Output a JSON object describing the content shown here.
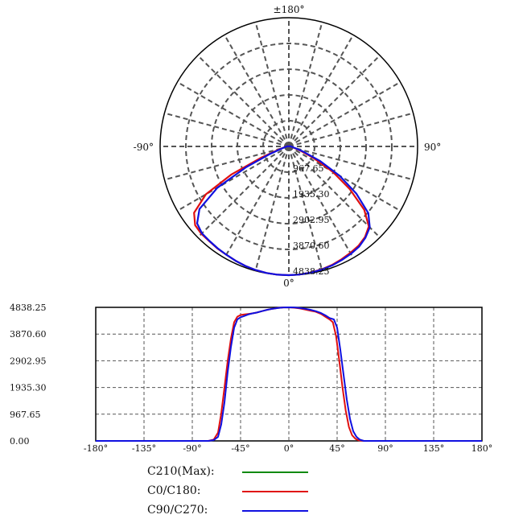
{
  "chart_data": [
    {
      "type": "polar",
      "angle_labels": {
        "top": "±180°",
        "left": "-90°",
        "right": "90°",
        "bottom": "0°"
      },
      "radial_labels": [
        "967.65",
        "1935.30",
        "2902.95",
        "3870.60",
        "4838.25"
      ],
      "rmax": 4838.25,
      "grid": true,
      "series": [
        {
          "name": "C0/C180",
          "color": "#e01010",
          "points": [
            [
              -180,
              0
            ],
            [
              -140,
              0
            ],
            [
              -100,
              60
            ],
            [
              -80,
              160
            ],
            [
              -72,
              450
            ],
            [
              -68,
              1100
            ],
            [
              -64,
              2400
            ],
            [
              -60,
              3600
            ],
            [
              -55,
              4350
            ],
            [
              -50,
              4600
            ],
            [
              -45,
              4650
            ],
            [
              -40,
              4650
            ],
            [
              -35,
              4680
            ],
            [
              -30,
              4700
            ],
            [
              -25,
              4740
            ],
            [
              -20,
              4780
            ],
            [
              -15,
              4810
            ],
            [
              -10,
              4830
            ],
            [
              -5,
              4838
            ],
            [
              0,
              4838
            ],
            [
              5,
              4830
            ],
            [
              10,
              4810
            ],
            [
              15,
              4780
            ],
            [
              20,
              4740
            ],
            [
              25,
              4680
            ],
            [
              30,
              4620
            ],
            [
              35,
              4560
            ],
            [
              40,
              4450
            ],
            [
              45,
              4250
            ],
            [
              50,
              3700
            ],
            [
              55,
              2800
            ],
            [
              60,
              1900
            ],
            [
              65,
              1000
            ],
            [
              70,
              450
            ],
            [
              75,
              200
            ],
            [
              80,
              120
            ],
            [
              100,
              50
            ],
            [
              140,
              0
            ],
            [
              180,
              0
            ]
          ]
        },
        {
          "name": "C90/C270",
          "color": "#1010e0",
          "points": [
            [
              -180,
              0
            ],
            [
              -140,
              0
            ],
            [
              -100,
              50
            ],
            [
              -80,
              150
            ],
            [
              -72,
              350
            ],
            [
              -68,
              800
            ],
            [
              -64,
              1800
            ],
            [
              -60,
              3100
            ],
            [
              -55,
              4100
            ],
            [
              -50,
              4500
            ],
            [
              -45,
              4620
            ],
            [
              -40,
              4640
            ],
            [
              -35,
              4670
            ],
            [
              -30,
              4700
            ],
            [
              -25,
              4740
            ],
            [
              -20,
              4780
            ],
            [
              -15,
              4810
            ],
            [
              -10,
              4830
            ],
            [
              -5,
              4838
            ],
            [
              0,
              4838
            ],
            [
              5,
              4830
            ],
            [
              10,
              4815
            ],
            [
              15,
              4790
            ],
            [
              20,
              4760
            ],
            [
              25,
              4710
            ],
            [
              30,
              4660
            ],
            [
              35,
              4600
            ],
            [
              40,
              4480
            ],
            [
              45,
              4300
            ],
            [
              50,
              3900
            ],
            [
              55,
              3100
            ],
            [
              60,
              2200
            ],
            [
              65,
              1300
            ],
            [
              70,
              600
            ],
            [
              75,
              250
            ],
            [
              80,
              130
            ],
            [
              100,
              50
            ],
            [
              140,
              0
            ],
            [
              180,
              0
            ]
          ]
        }
      ]
    },
    {
      "type": "line",
      "x_ticks": [
        "-180°",
        "-135°",
        "-90°",
        "-45°",
        "0°",
        "45°",
        "90°",
        "135°",
        "180°"
      ],
      "y_ticks": [
        "4838.25",
        "3870.60",
        "2902.95",
        "1935.30",
        "967.65",
        "0.00"
      ],
      "xlim": [
        -180,
        180
      ],
      "ylim": [
        0,
        4838.25
      ],
      "grid": true,
      "series": [
        {
          "name": "C0/C180",
          "color": "#e01010",
          "points": [
            [
              -180,
              0
            ],
            [
              -100,
              0
            ],
            [
              -75,
              0
            ],
            [
              -70,
              50
            ],
            [
              -66,
              300
            ],
            [
              -63,
              1000
            ],
            [
              -60,
              1935
            ],
            [
              -57,
              2900
            ],
            [
              -54,
              3700
            ],
            [
              -51,
              4300
            ],
            [
              -48,
              4500
            ],
            [
              -45,
              4560
            ],
            [
              -42,
              4580
            ],
            [
              -38,
              4600
            ],
            [
              -34,
              4620
            ],
            [
              -30,
              4650
            ],
            [
              -25,
              4700
            ],
            [
              -20,
              4750
            ],
            [
              -15,
              4790
            ],
            [
              -10,
              4815
            ],
            [
              -5,
              4835
            ],
            [
              0,
              4838
            ],
            [
              5,
              4825
            ],
            [
              10,
              4800
            ],
            [
              15,
              4760
            ],
            [
              20,
              4720
            ],
            [
              25,
              4680
            ],
            [
              30,
              4600
            ],
            [
              34,
              4500
            ],
            [
              38,
              4400
            ],
            [
              41,
              4300
            ],
            [
              44,
              3800
            ],
            [
              47,
              2900
            ],
            [
              50,
              1935
            ],
            [
              53,
              1100
            ],
            [
              56,
              500
            ],
            [
              59,
              200
            ],
            [
              62,
              80
            ],
            [
              65,
              20
            ],
            [
              70,
              0
            ],
            [
              100,
              0
            ],
            [
              180,
              0
            ]
          ]
        },
        {
          "name": "C90/C270",
          "color": "#1010e0",
          "points": [
            [
              -180,
              0
            ],
            [
              -100,
              0
            ],
            [
              -75,
              0
            ],
            [
              -70,
              30
            ],
            [
              -66,
              150
            ],
            [
              -63,
              600
            ],
            [
              -60,
              1400
            ],
            [
              -57,
              2500
            ],
            [
              -54,
              3400
            ],
            [
              -51,
              4100
            ],
            [
              -48,
              4400
            ],
            [
              -45,
              4480
            ],
            [
              -42,
              4520
            ],
            [
              -38,
              4580
            ],
            [
              -34,
              4620
            ],
            [
              -30,
              4650
            ],
            [
              -25,
              4700
            ],
            [
              -20,
              4750
            ],
            [
              -15,
              4790
            ],
            [
              -10,
              4815
            ],
            [
              -5,
              4835
            ],
            [
              0,
              4838
            ],
            [
              5,
              4835
            ],
            [
              10,
              4815
            ],
            [
              15,
              4790
            ],
            [
              20,
              4750
            ],
            [
              25,
              4700
            ],
            [
              30,
              4630
            ],
            [
              34,
              4550
            ],
            [
              38,
              4450
            ],
            [
              42,
              4400
            ],
            [
              45,
              4100
            ],
            [
              48,
              3300
            ],
            [
              51,
              2400
            ],
            [
              54,
              1500
            ],
            [
              57,
              800
            ],
            [
              60,
              350
            ],
            [
              63,
              150
            ],
            [
              66,
              50
            ],
            [
              70,
              0
            ],
            [
              100,
              0
            ],
            [
              180,
              0
            ]
          ]
        }
      ]
    }
  ],
  "legend": [
    {
      "label": "C210(Max):",
      "color": "#118a11"
    },
    {
      "label": "C0/C180:",
      "color": "#e01010"
    },
    {
      "label": "C90/C270:",
      "color": "#1010e0"
    }
  ]
}
